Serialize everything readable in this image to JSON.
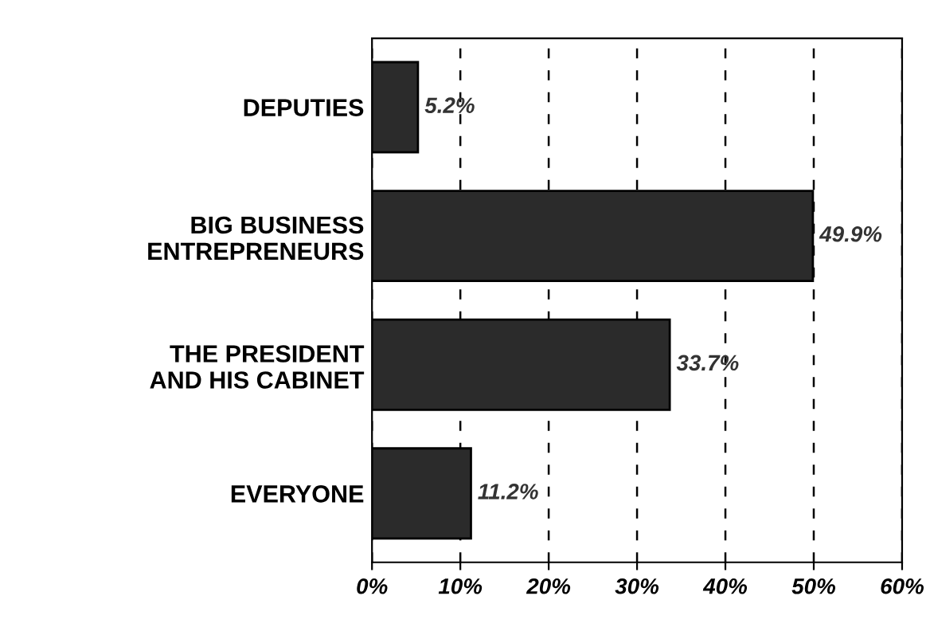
{
  "chart_data": {
    "type": "bar",
    "orientation": "horizontal",
    "categories": [
      "DEPUTIES",
      "BIG BUSINESS\nENTREPRENEURS",
      "THE PRESIDENT\nAND HIS CABINET",
      "EVERYONE"
    ],
    "values": [
      5.2,
      49.9,
      33.7,
      11.2
    ],
    "value_labels": [
      "5.2%",
      "49.9%",
      "33.7%",
      "11.2%"
    ],
    "color": "#2b2b2b",
    "xlim": [
      0,
      60
    ],
    "xticks": [
      {
        "value": 0,
        "label": "0%"
      },
      {
        "value": 10,
        "label": "10%"
      },
      {
        "value": 20,
        "label": "20%"
      },
      {
        "value": 30,
        "label": "30%"
      },
      {
        "value": 40,
        "label": "40%"
      },
      {
        "value": 50,
        "label": "50%"
      },
      {
        "value": 60,
        "label": "60%"
      }
    ],
    "grid": "x",
    "line_style": "dashed",
    "legend": false
  }
}
